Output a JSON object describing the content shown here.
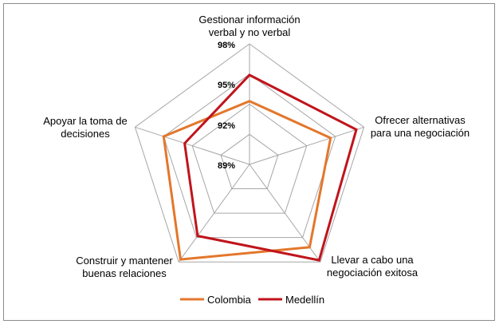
{
  "chart_data": {
    "type": "radar",
    "categories": [
      [
        "Gestionar información",
        "verbal y no verbal"
      ],
      [
        "Ofrecer alternativas",
        "para una negociación"
      ],
      [
        "Llevar a cabo una",
        "negociación exitosa"
      ],
      [
        "Construir y mantener",
        "buenas relaciones"
      ],
      [
        "Apoyar la toma de",
        "decisiones"
      ]
    ],
    "tick_labels": [
      "89%",
      "92%",
      "95%",
      "98%"
    ],
    "r_min": 86,
    "r_max": 98,
    "r_ticks": [
      89,
      92,
      95,
      98
    ],
    "series": [
      {
        "name": "Colombia",
        "color": "#e3772c",
        "values": [
          92.3,
          94.5,
          96.2,
          97.7,
          95.0
        ]
      },
      {
        "name": "Medellín",
        "color": "#c0141c",
        "values": [
          94.9,
          97.2,
          97.8,
          94.8,
          92.8
        ]
      }
    ],
    "legend_position": "bottom",
    "grid": true
  }
}
